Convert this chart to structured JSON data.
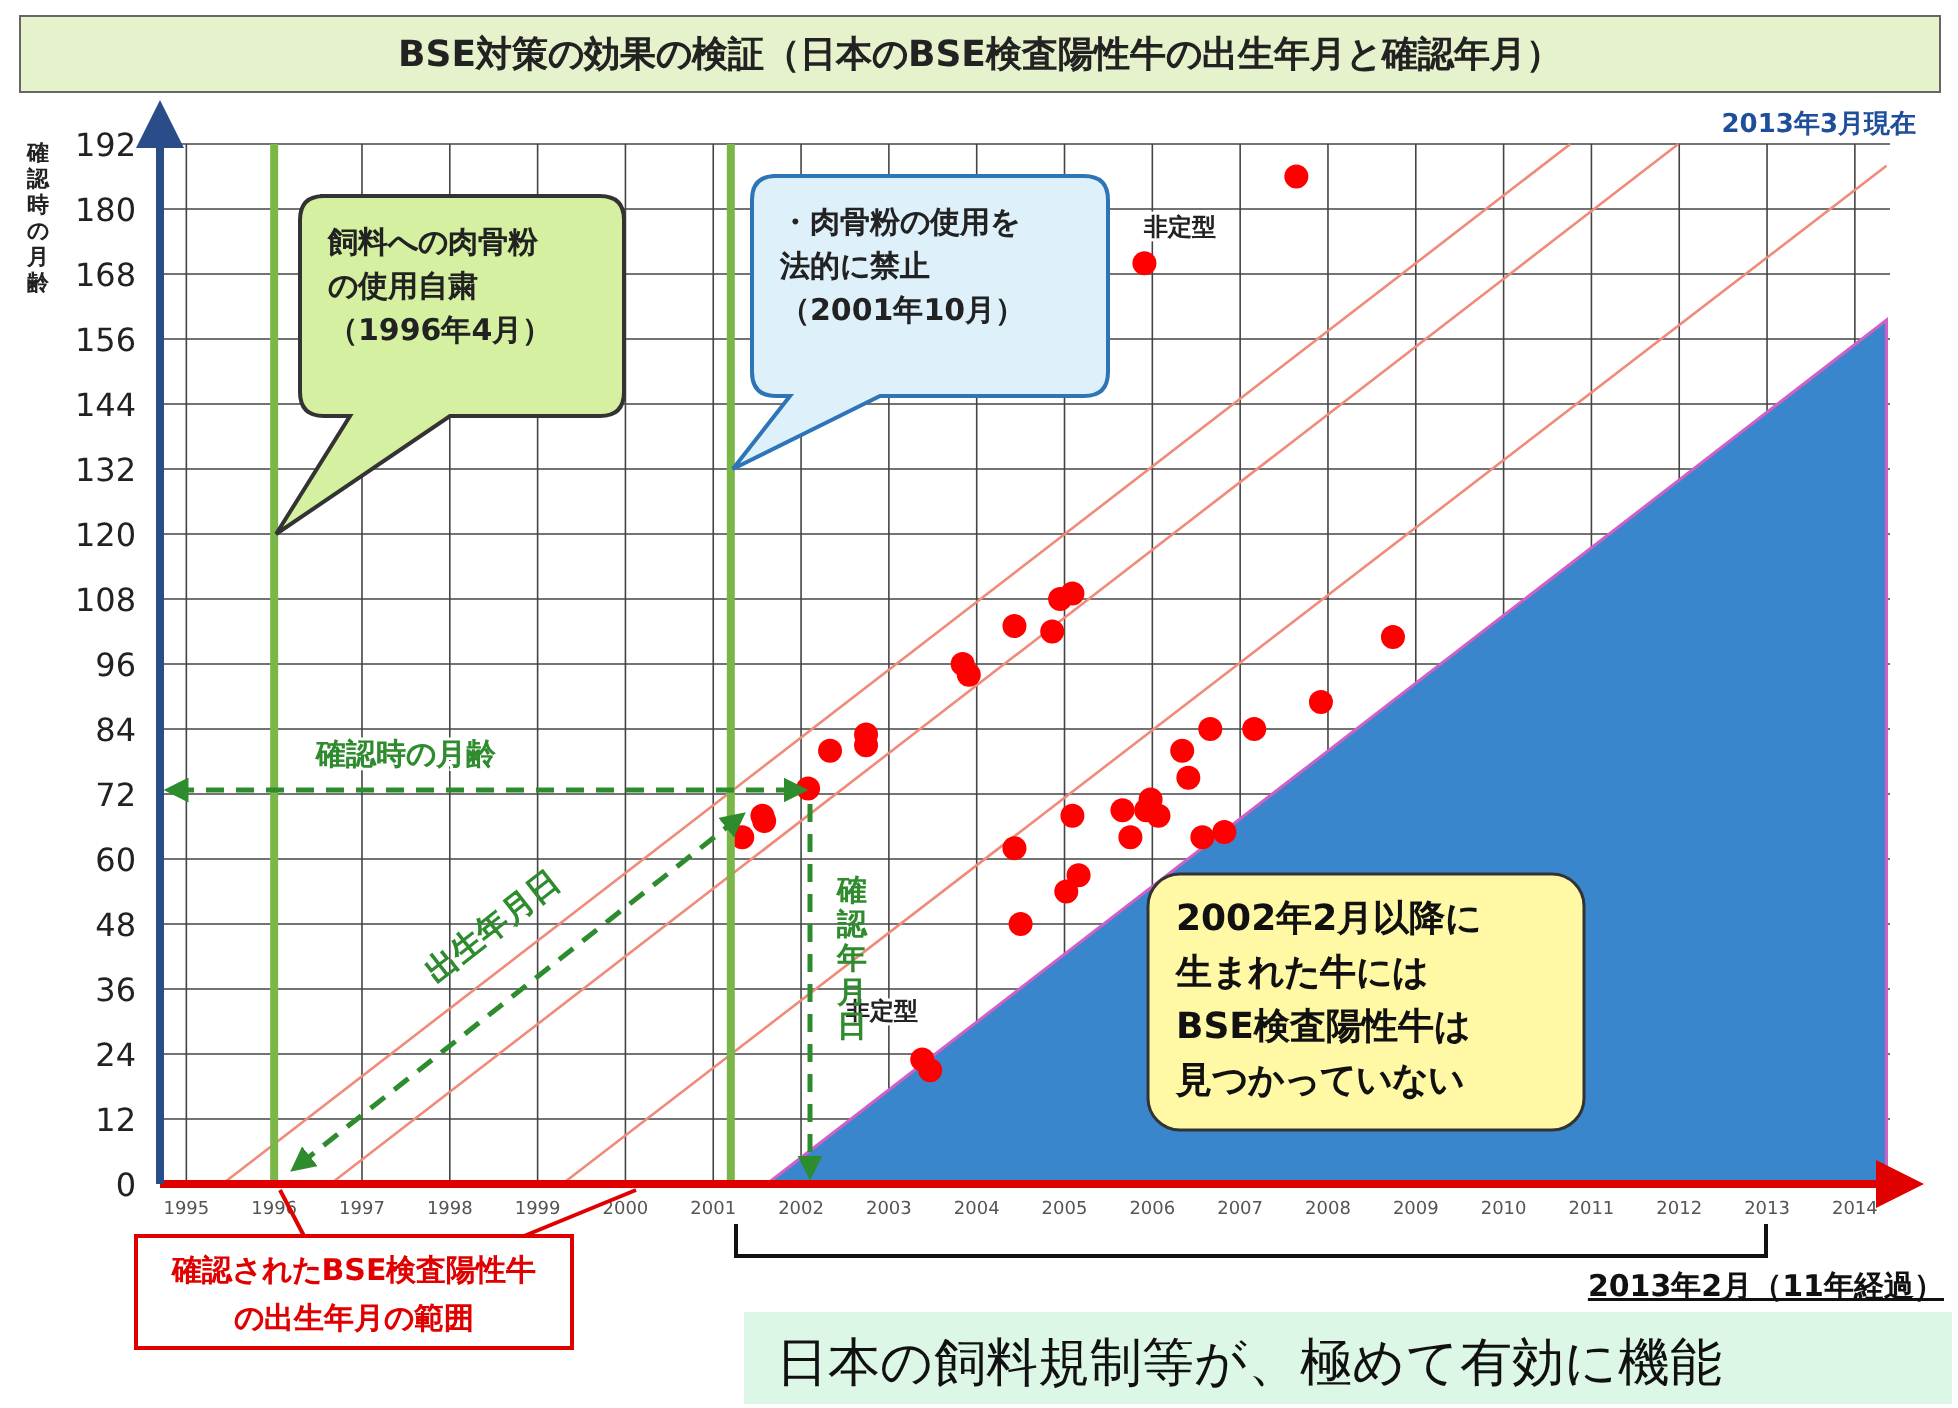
{
  "chart_data": {
    "type": "scatter",
    "title": "BSE対策の効果の検証（日本のBSE検査陽性牛の出生年月と確認年月）",
    "subtitle": "2013年3月現在",
    "ylabel": "確認時の月齢",
    "xlim": [
      1994.7,
      2014.4
    ],
    "xticks": [
      1995,
      1996,
      1997,
      1998,
      1999,
      2000,
      2001,
      2002,
      2003,
      2004,
      2005,
      2006,
      2007,
      2008,
      2009,
      2010,
      2011,
      2012,
      2013,
      2014
    ],
    "ylim": [
      0,
      192
    ],
    "yticks": [
      0,
      12,
      24,
      36,
      48,
      60,
      72,
      84,
      96,
      108,
      120,
      132,
      144,
      156,
      168,
      180,
      192
    ],
    "grid": true,
    "series": [
      {
        "type": "area",
        "color": "#3a86cc",
        "x": [
          2001.61,
          2014.36
        ],
        "values": [
          0,
          159.5
        ]
      },
      {
        "type": "line",
        "color": "#f08a7a",
        "x": [
          1995.41,
          2010.76
        ],
        "values": [
          0,
          192
        ]
      },
      {
        "type": "line",
        "color": "#f08a7a",
        "x": [
          1996.64,
          2011.99
        ],
        "values": [
          0,
          192
        ]
      },
      {
        "type": "line",
        "color": "#f08a7a",
        "x": [
          1999.28,
          2014.36
        ],
        "values": [
          0,
          188
        ]
      },
      {
        "color": "#ff0000",
        "marker": "circle",
        "x": [
          2007.64,
          2005.91,
          2008.74,
          2004.95,
          2005.09,
          2004.86,
          2004.43,
          2003.84,
          2003.91,
          2002.74,
          2002.74,
          2002.33,
          2002.08,
          2001.56,
          2001.58,
          2001.33,
          2004.43,
          2004.5,
          2005.09,
          2005.02,
          2005.16,
          2005.66,
          2005.75,
          2005.98,
          2005.93,
          2006.07,
          2006.34,
          2006.41,
          2006.66,
          2007.16,
          2007.92,
          2006.57,
          2006.82,
          2003.38,
          2003.47
        ],
        "values": [
          186,
          170,
          101,
          108,
          109,
          102,
          103,
          96,
          94,
          83,
          81,
          80,
          73,
          68,
          67,
          64,
          62,
          48,
          68,
          54,
          57,
          69,
          64,
          71,
          69,
          68,
          80,
          75,
          84,
          84,
          89,
          64,
          65,
          23,
          21
        ]
      }
    ],
    "ref_lines": [
      {
        "axis": "x",
        "value": 1996.0,
        "label": "飼料への肉骨粉の使用自粛（1996年4月）",
        "color": "#7ab648"
      },
      {
        "axis": "x",
        "value": 2001.2,
        "label": "・肉骨粉の使用を法的に禁止（2001年10月）",
        "color": "#7ab648"
      }
    ],
    "annotations": [
      {
        "text": "非定型",
        "x": 2005.91,
        "y": 170
      },
      {
        "text": "非定型",
        "x": 2003.38,
        "y": 23
      },
      "確認時の月齢",
      "出生年月日",
      "確認年月日",
      "2002年2月以降に生まれた牛にはBSE検査陽性牛は見つかっていない",
      "確認されたBSE検査陽性牛の出生年月の範囲",
      "2013年2月（11年経過）",
      "日本の飼料規制等が、極めて有効に機能"
    ]
  }
}
